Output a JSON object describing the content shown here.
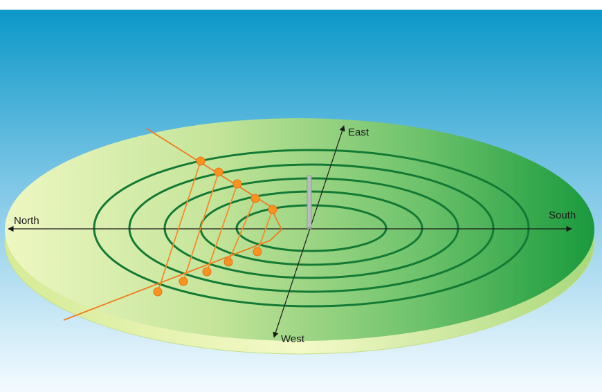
{
  "directions": {
    "north": "North",
    "south": "South",
    "east": "East",
    "west": "West"
  },
  "colors": {
    "sky_top": "#0b98c8",
    "sky_bottom": "#f4fbff",
    "disc_light": "#e7f3b2",
    "disc_dark": "#1c9a3c",
    "rings": "#127a35",
    "path": "#f07a1e",
    "points": "#f7931e",
    "gnomon": "#b8bcc0"
  }
}
